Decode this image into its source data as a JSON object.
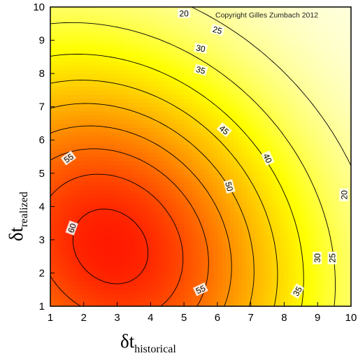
{
  "chart_data": {
    "type": "heatmap",
    "subtype": "filled-contour",
    "x_ticks": [
      1,
      2,
      3,
      4,
      5,
      6,
      7,
      8,
      9,
      10
    ],
    "y_ticks": [
      1,
      2,
      3,
      4,
      5,
      6,
      7,
      8,
      9,
      10
    ],
    "xlim": [
      1,
      10
    ],
    "ylim": [
      1,
      10
    ],
    "xlabel": {
      "main": "δt",
      "sub": "historical"
    },
    "ylabel": {
      "main": "δt",
      "sub": "realized"
    },
    "color_scale": {
      "low": "#ffffe6",
      "mid": "#ffff00",
      "high": "#ff1a00"
    },
    "model": {
      "peak": [
        2.8,
        2.8
      ],
      "peak_value": 62,
      "decay_x": 0.016,
      "decay_y": 0.016,
      "value_range": [
        15,
        62
      ]
    },
    "contour_levels": [
      20,
      25,
      30,
      35,
      40,
      45,
      50,
      55,
      60
    ],
    "contour_labels": [
      {
        "text": "20",
        "x": 5.0,
        "y": 9.8,
        "angle": 0
      },
      {
        "text": "25",
        "x": 6.0,
        "y": 9.3,
        "angle": 15
      },
      {
        "text": "30",
        "x": 5.5,
        "y": 8.75,
        "angle": 10
      },
      {
        "text": "35",
        "x": 5.5,
        "y": 8.1,
        "angle": 15
      },
      {
        "text": "45",
        "x": 6.2,
        "y": 6.3,
        "angle": 40
      },
      {
        "text": "40",
        "x": 7.5,
        "y": 5.45,
        "angle": 65
      },
      {
        "text": "50",
        "x": 6.35,
        "y": 4.6,
        "angle": 75
      },
      {
        "text": "55",
        "x": 1.55,
        "y": 5.45,
        "angle": -35
      },
      {
        "text": "60",
        "x": 1.65,
        "y": 3.35,
        "angle": -70
      },
      {
        "text": "55",
        "x": 5.5,
        "y": 1.5,
        "angle": -25
      },
      {
        "text": "35",
        "x": 8.4,
        "y": 1.45,
        "angle": -60
      },
      {
        "text": "30",
        "x": 9.0,
        "y": 2.45,
        "angle": -90
      },
      {
        "text": "25",
        "x": 9.45,
        "y": 2.45,
        "angle": -90
      },
      {
        "text": "20",
        "x": 9.8,
        "y": 4.35,
        "angle": -90
      }
    ],
    "annotation": "Copyright Gilles Zumbach 2012"
  }
}
